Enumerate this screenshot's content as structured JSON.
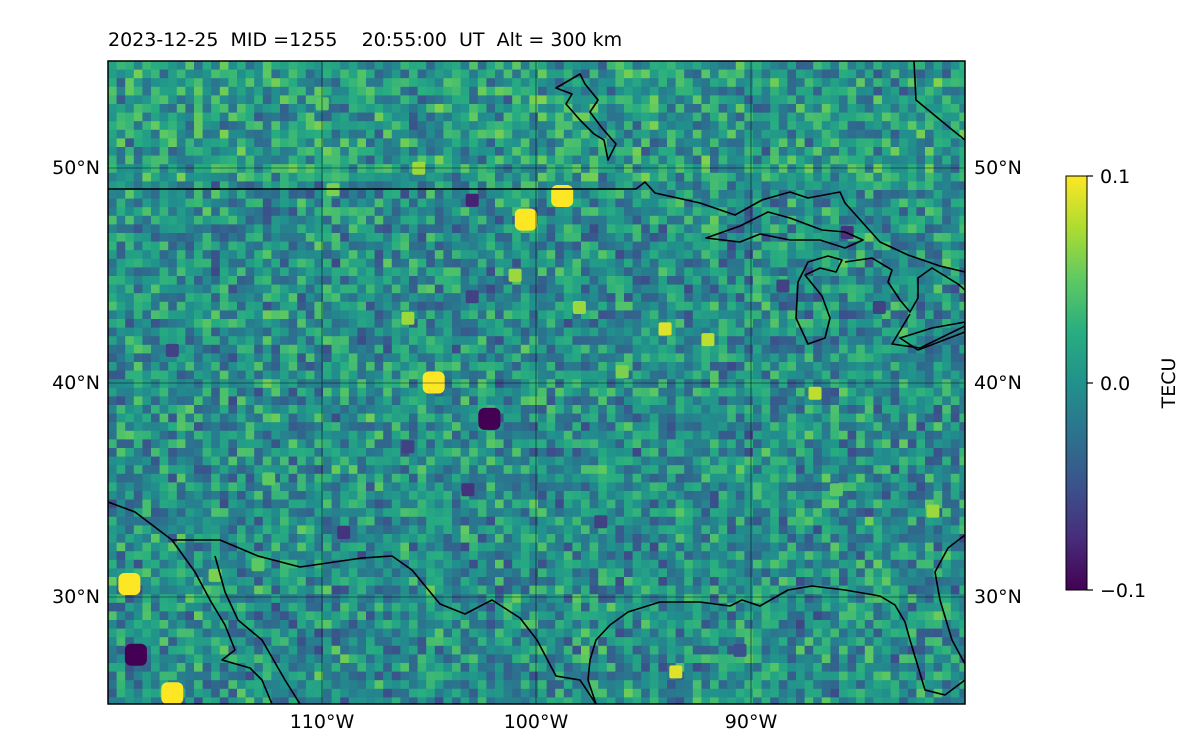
{
  "title": "2023-12-25  MID =1255    20:55:00  UT  Alt = 300 km",
  "map": {
    "extent": {
      "lon_min": -120,
      "lon_max": -80,
      "lat_min": 25,
      "lat_max": 55
    },
    "grid_lons": [
      -110,
      -100,
      -90
    ],
    "grid_lats": [
      30,
      40,
      50
    ],
    "lon_labels": [
      "110°W",
      "100°W",
      "90°W"
    ],
    "lat_labels_left": [
      "30°N",
      "40°N",
      "50°N"
    ],
    "lat_labels_right": [
      "30°N",
      "40°N",
      "50°N"
    ],
    "field_mean_tecu": 0.0,
    "field_colormap": "viridis",
    "notable_anomalies": [
      {
        "lon": -118.7,
        "lat": 27.3,
        "value": -0.1
      },
      {
        "lon": -119.0,
        "lat": 30.6,
        "value": 0.1
      },
      {
        "lon": -117.0,
        "lat": 25.5,
        "value": 0.1
      },
      {
        "lon": -102.2,
        "lat": 38.3,
        "value": -0.1
      },
      {
        "lon": -103.2,
        "lat": 35.0,
        "value": -0.07
      },
      {
        "lon": -104.8,
        "lat": 40.0,
        "value": 0.1
      },
      {
        "lon": -100.5,
        "lat": 47.6,
        "value": 0.1
      },
      {
        "lon": -98.8,
        "lat": 48.7,
        "value": 0.1
      },
      {
        "lon": -94.0,
        "lat": 42.5,
        "value": 0.09
      },
      {
        "lon": -93.5,
        "lat": 26.5,
        "value": 0.09
      },
      {
        "lon": -101.0,
        "lat": 45.0,
        "value": 0.07
      },
      {
        "lon": -92.0,
        "lat": 42.0,
        "value": 0.08
      },
      {
        "lon": -81.5,
        "lat": 34.0,
        "value": 0.07
      },
      {
        "lon": -115.0,
        "lat": 31.0,
        "value": 0.06
      },
      {
        "lon": -113.0,
        "lat": 31.5,
        "value": 0.05
      },
      {
        "lon": -109.0,
        "lat": 33.0,
        "value": -0.07
      },
      {
        "lon": -106.0,
        "lat": 37.0,
        "value": -0.06
      },
      {
        "lon": -103.0,
        "lat": 44.0,
        "value": -0.06
      },
      {
        "lon": -106.0,
        "lat": 43.0,
        "value": 0.07
      },
      {
        "lon": -103.0,
        "lat": 48.5,
        "value": -0.08
      },
      {
        "lon": -87.0,
        "lat": 39.5,
        "value": 0.08
      },
      {
        "lon": -98.0,
        "lat": 43.5,
        "value": 0.07
      },
      {
        "lon": -96.0,
        "lat": 40.5,
        "value": 0.06
      },
      {
        "lon": -97.0,
        "lat": 33.5,
        "value": -0.06
      },
      {
        "lon": -88.5,
        "lat": 44.5,
        "value": -0.06
      },
      {
        "lon": -85.5,
        "lat": 47.0,
        "value": -0.07
      },
      {
        "lon": -84.0,
        "lat": 43.5,
        "value": -0.06
      },
      {
        "lon": -109.5,
        "lat": 49.0,
        "value": 0.06
      },
      {
        "lon": -105.5,
        "lat": 50.0,
        "value": 0.07
      },
      {
        "lon": -110.0,
        "lat": 53.0,
        "value": 0.05
      },
      {
        "lon": -90.5,
        "lat": 27.5,
        "value": -0.05
      },
      {
        "lon": -86.0,
        "lat": 35.0,
        "value": 0.05
      },
      {
        "lon": -117.0,
        "lat": 41.5,
        "value": -0.06
      },
      {
        "lon": -112.5,
        "lat": 35.5,
        "value": 0.05
      }
    ]
  },
  "colorbar": {
    "label": "TECU",
    "min": -0.1,
    "max": 0.1,
    "tick_values": [
      0.1,
      0.0,
      -0.1
    ],
    "tick_labels": [
      "0.1",
      "0.0",
      "−0.1"
    ]
  }
}
